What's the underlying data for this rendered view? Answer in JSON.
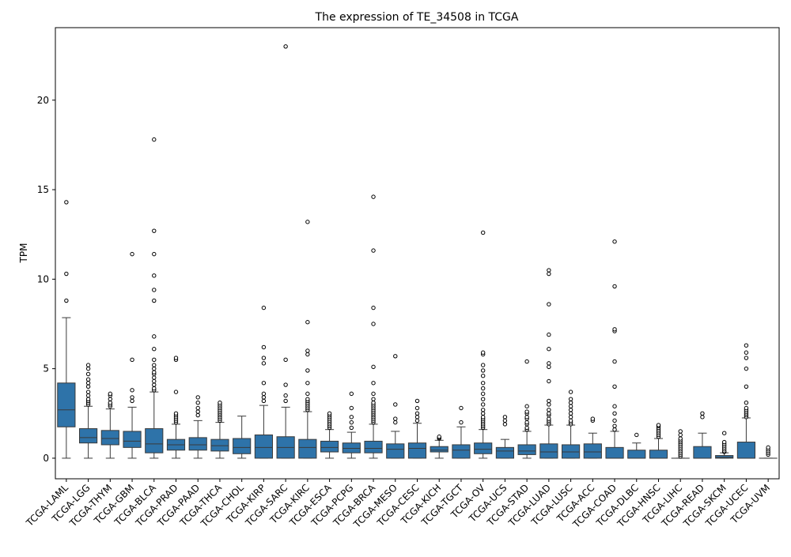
{
  "chart_data": {
    "type": "box",
    "title": "The expression of TE_34508 in TCGA",
    "xlabel": "",
    "ylabel": "TPM",
    "ylim": [
      -1.15,
      24.05
    ],
    "yticks": [
      0,
      5,
      10,
      15,
      20
    ],
    "grid": false,
    "box_color": "#2E73A9",
    "edge_color": "#3A3A3A",
    "categories": [
      "TCGA-LAML",
      "TCGA-LGG",
      "TCGA-THYM",
      "TCGA-GBM",
      "TCGA-BLCA",
      "TCGA-PRAD",
      "TCGA-PAAD",
      "TCGA-THCA",
      "TCGA-CHOL",
      "TCGA-KIRP",
      "TCGA-SARC",
      "TCGA-KIRC",
      "TCGA-ESCA",
      "TCGA-PCPG",
      "TCGA-BRCA",
      "TCGA-MESO",
      "TCGA-CESC",
      "TCGA-KICH",
      "TCGA-TGCT",
      "TCGA-OV",
      "TCGA-UCS",
      "TCGA-STAD",
      "TCGA-LUAD",
      "TCGA-LUSC",
      "TCGA-ACC",
      "TCGA-COAD",
      "TCGA-DLBC",
      "TCGA-HNSC",
      "TCGA-LIHC",
      "TCGA-READ",
      "TCGA-SKCM",
      "TCGA-UCEC",
      "TCGA-UVM"
    ],
    "boxes": [
      {
        "whislo": 0,
        "q1": 1.75,
        "med": 2.7,
        "q3": 4.2,
        "whishi": 7.85,
        "fliers": [
          8.8,
          10.3,
          14.3
        ]
      },
      {
        "whislo": 0,
        "q1": 0.85,
        "med": 1.15,
        "q3": 1.65,
        "whishi": 2.9,
        "fliers": [
          3.0,
          3.1,
          3.2,
          3.3,
          3.5,
          3.7,
          4.0,
          4.2,
          4.4,
          4.7,
          5.0,
          5.2
        ]
      },
      {
        "whislo": 0,
        "q1": 0.75,
        "med": 1.1,
        "q3": 1.55,
        "whishi": 2.75,
        "fliers": [
          2.9,
          3.0,
          3.1,
          3.3,
          3.5,
          3.6
        ]
      },
      {
        "whislo": 0,
        "q1": 0.6,
        "med": 0.95,
        "q3": 1.5,
        "whishi": 2.85,
        "fliers": [
          3.2,
          3.4,
          3.8,
          5.5,
          11.4
        ]
      },
      {
        "whislo": 0,
        "q1": 0.3,
        "med": 0.8,
        "q3": 1.65,
        "whishi": 3.7,
        "fliers": [
          3.8,
          3.9,
          4.1,
          4.3,
          4.5,
          4.7,
          4.8,
          5.0,
          5.2,
          5.5,
          6.1,
          6.8,
          8.8,
          9.4,
          10.2,
          11.4,
          12.7,
          17.8
        ]
      },
      {
        "whislo": 0,
        "q1": 0.45,
        "med": 0.75,
        "q3": 1.05,
        "whishi": 1.9,
        "fliers": [
          2.0,
          2.1,
          2.2,
          2.3,
          2.4,
          2.5,
          3.7,
          5.5,
          5.6
        ]
      },
      {
        "whislo": 0,
        "q1": 0.45,
        "med": 0.75,
        "q3": 1.15,
        "whishi": 2.1,
        "fliers": [
          2.4,
          2.6,
          2.8,
          3.1,
          3.4
        ]
      },
      {
        "whislo": 0,
        "q1": 0.4,
        "med": 0.7,
        "q3": 1.05,
        "whishi": 2.0,
        "fliers": [
          2.1,
          2.2,
          2.3,
          2.4,
          2.5,
          2.6,
          2.7,
          2.8,
          2.9,
          3.0,
          3.1
        ]
      },
      {
        "whislo": 0,
        "q1": 0.25,
        "med": 0.6,
        "q3": 1.1,
        "whishi": 2.35,
        "fliers": []
      },
      {
        "whislo": 0,
        "q1": 0,
        "med": 0.6,
        "q3": 1.3,
        "whishi": 2.95,
        "fliers": [
          3.2,
          3.4,
          3.6,
          4.2,
          5.3,
          5.6,
          6.2,
          8.4
        ]
      },
      {
        "whislo": 0,
        "q1": 0,
        "med": 0.6,
        "q3": 1.2,
        "whishi": 2.85,
        "fliers": [
          3.2,
          3.5,
          4.1,
          5.5,
          23.0
        ]
      },
      {
        "whislo": 0,
        "q1": 0,
        "med": 0.6,
        "q3": 1.05,
        "whishi": 2.6,
        "fliers": [
          2.7,
          2.8,
          2.9,
          3.0,
          3.1,
          3.2,
          3.3,
          3.6,
          4.2,
          4.9,
          5.8,
          6.0,
          7.6,
          13.2
        ]
      },
      {
        "whislo": 0,
        "q1": 0.35,
        "med": 0.6,
        "q3": 0.95,
        "whishi": 1.6,
        "fliers": [
          1.7,
          1.8,
          1.9,
          2.0,
          2.1,
          2.2,
          2.3,
          2.4,
          2.5
        ]
      },
      {
        "whislo": 0,
        "q1": 0.3,
        "med": 0.55,
        "q3": 0.85,
        "whishi": 1.45,
        "fliers": [
          1.7,
          2.0,
          2.3,
          2.8,
          3.6
        ]
      },
      {
        "whislo": 0,
        "q1": 0.3,
        "med": 0.55,
        "q3": 0.95,
        "whishi": 1.9,
        "fliers": [
          2.0,
          2.1,
          2.2,
          2.3,
          2.4,
          2.5,
          2.6,
          2.7,
          2.8,
          2.9,
          3.0,
          3.1,
          3.3,
          3.6,
          4.2,
          5.1,
          7.5,
          8.4,
          11.6,
          14.6
        ]
      },
      {
        "whislo": 0,
        "q1": 0,
        "med": 0.5,
        "q3": 0.8,
        "whishi": 1.5,
        "fliers": [
          2.0,
          2.2,
          3.0,
          5.7
        ]
      },
      {
        "whislo": 0,
        "q1": 0,
        "med": 0.55,
        "q3": 0.85,
        "whishi": 1.95,
        "fliers": [
          2.1,
          2.3,
          2.5,
          2.8,
          3.2
        ]
      },
      {
        "whislo": 0,
        "q1": 0.35,
        "med": 0.45,
        "q3": 0.65,
        "whishi": 1.0,
        "fliers": [
          1.1,
          1.15,
          1.2
        ]
      },
      {
        "whislo": 0,
        "q1": 0,
        "med": 0.45,
        "q3": 0.75,
        "whishi": 1.75,
        "fliers": [
          2.0,
          2.8
        ]
      },
      {
        "whislo": 0,
        "q1": 0.25,
        "med": 0.5,
        "q3": 0.85,
        "whishi": 1.6,
        "fliers": [
          1.7,
          1.8,
          1.9,
          2.0,
          2.1,
          2.2,
          2.3,
          2.5,
          2.7,
          3.0,
          3.3,
          3.6,
          3.9,
          4.2,
          4.6,
          4.9,
          5.2,
          5.8,
          5.9,
          12.6
        ]
      },
      {
        "whislo": 0,
        "q1": 0,
        "med": 0.4,
        "q3": 0.6,
        "whishi": 1.05,
        "fliers": [
          1.9,
          2.1,
          2.3
        ]
      },
      {
        "whislo": 0,
        "q1": 0.2,
        "med": 0.4,
        "q3": 0.75,
        "whishi": 1.5,
        "fliers": [
          1.6,
          1.7,
          1.9,
          2.0,
          2.2,
          2.3,
          2.5,
          2.6,
          2.9,
          5.4
        ]
      },
      {
        "whislo": 0,
        "q1": 0,
        "med": 0.35,
        "q3": 0.8,
        "whishi": 1.85,
        "fliers": [
          1.9,
          2.0,
          2.1,
          2.2,
          2.4,
          2.5,
          2.7,
          3.0,
          3.2,
          4.3,
          5.1,
          5.3,
          6.1,
          6.9,
          8.6,
          10.3,
          10.5
        ]
      },
      {
        "whislo": 0,
        "q1": 0,
        "med": 0.35,
        "q3": 0.75,
        "whishi": 1.85,
        "fliers": [
          1.9,
          2.0,
          2.1,
          2.3,
          2.5,
          2.7,
          2.9,
          3.1,
          3.3,
          3.7
        ]
      },
      {
        "whislo": 0,
        "q1": 0,
        "med": 0.35,
        "q3": 0.8,
        "whishi": 1.4,
        "fliers": [
          2.1,
          2.2
        ]
      },
      {
        "whislo": 0,
        "q1": 0,
        "med": 0,
        "q3": 0.6,
        "whishi": 1.5,
        "fliers": [
          1.6,
          1.8,
          2.1,
          2.5,
          2.9,
          4.0,
          5.4,
          7.1,
          7.2,
          9.6,
          12.1
        ]
      },
      {
        "whislo": 0,
        "q1": 0,
        "med": 0,
        "q3": 0.45,
        "whishi": 0.85,
        "fliers": [
          1.3
        ]
      },
      {
        "whislo": 0,
        "q1": 0,
        "med": 0,
        "q3": 0.45,
        "whishi": 1.1,
        "fliers": [
          1.2,
          1.3,
          1.4,
          1.5,
          1.6,
          1.7,
          1.8,
          1.85
        ]
      },
      {
        "whislo": 0,
        "q1": 0,
        "med": 0,
        "q3": 0,
        "whishi": 0,
        "fliers": [
          0.1,
          0.2,
          0.3,
          0.4,
          0.5,
          0.6,
          0.7,
          0.8,
          0.9,
          1.0,
          1.1,
          1.3,
          1.5
        ]
      },
      {
        "whislo": 0,
        "q1": 0,
        "med": 0,
        "q3": 0.65,
        "whishi": 1.4,
        "fliers": [
          2.3,
          2.5
        ]
      },
      {
        "whislo": 0,
        "q1": 0,
        "med": 0.05,
        "q3": 0.15,
        "whishi": 0.3,
        "fliers": [
          0.35,
          0.4,
          0.5,
          0.6,
          0.7,
          0.8,
          0.9,
          1.4
        ]
      },
      {
        "whislo": 0,
        "q1": 0,
        "med": 0,
        "q3": 0.9,
        "whishi": 2.25,
        "fliers": [
          2.3,
          2.4,
          2.5,
          2.6,
          2.7,
          2.8,
          3.1,
          4.0,
          5.0,
          5.6,
          5.9,
          6.3
        ]
      },
      {
        "whislo": 0,
        "q1": 0,
        "med": 0,
        "q3": 0,
        "whishi": 0,
        "fliers": [
          0.2,
          0.3,
          0.4,
          0.5,
          0.6
        ]
      }
    ]
  }
}
